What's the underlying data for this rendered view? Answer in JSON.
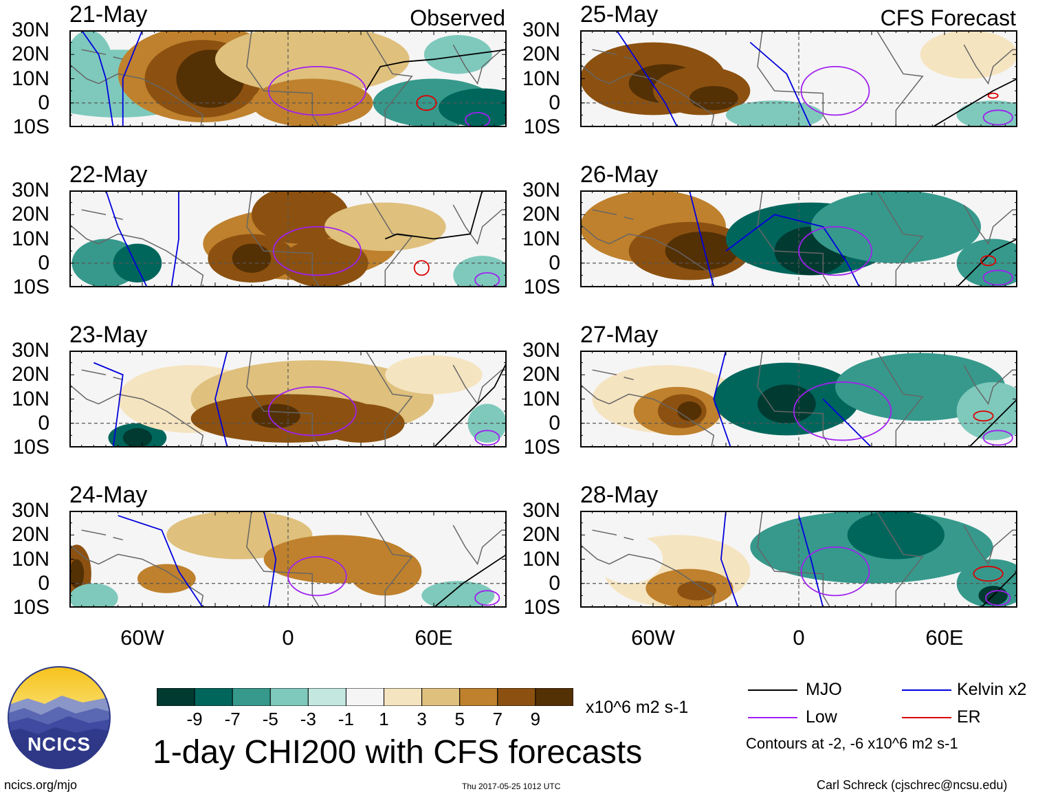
{
  "chart_data": {
    "type": "heatmap",
    "title": "1-day CHI200 with CFS forecasts",
    "units": "x10^6 m2 s-1",
    "panels_left_tag": "Observed",
    "panels_right_tag": "CFS Forecast",
    "latitude_ticks": [
      "30N",
      "20N",
      "10N",
      "0",
      "10S"
    ],
    "longitude_ticks": [
      "60W",
      "0",
      "60E"
    ],
    "lat_range": [
      -10,
      30
    ],
    "lon_range": [
      -90,
      90
    ],
    "panels": [
      {
        "date": "21-May",
        "kind": "Observed",
        "tag": "Observed"
      },
      {
        "date": "22-May",
        "kind": "Observed",
        "tag": ""
      },
      {
        "date": "23-May",
        "kind": "Observed",
        "tag": ""
      },
      {
        "date": "24-May",
        "kind": "Observed",
        "tag": ""
      },
      {
        "date": "25-May",
        "kind": "CFS Forecast",
        "tag": "CFS Forecast"
      },
      {
        "date": "26-May",
        "kind": "CFS Forecast",
        "tag": ""
      },
      {
        "date": "27-May",
        "kind": "CFS Forecast",
        "tag": ""
      },
      {
        "date": "28-May",
        "kind": "CFS Forecast",
        "tag": ""
      }
    ],
    "colorbar": {
      "labels": [
        "-9",
        "-7",
        "-5",
        "-3",
        "-1",
        "1",
        "3",
        "5",
        "7",
        "9"
      ],
      "colors": [
        "#003a31",
        "#00665c",
        "#36998c",
        "#7ec9bc",
        "#c4e8e0",
        "#f5f5f5",
        "#f5e4c0",
        "#dfc07d",
        "#bf812d",
        "#8c5110",
        "#543005"
      ]
    },
    "legend": [
      {
        "name": "MJO",
        "color": "#000000"
      },
      {
        "name": "Kelvin x2",
        "color": "#0000dd"
      },
      {
        "name": "Low",
        "color": "#a020f0"
      },
      {
        "name": "ER",
        "color": "#dd0000"
      }
    ],
    "contour_note": "Contours at -2, -6 x10^6 m2 s-1"
  },
  "footer": {
    "logo_text": "NCICS",
    "site": "ncics.org/mjo",
    "timestamp": "Thu 2017-05-25 1012 UTC",
    "credit": "Carl Schreck (cjschrec@ncsu.edu)"
  }
}
